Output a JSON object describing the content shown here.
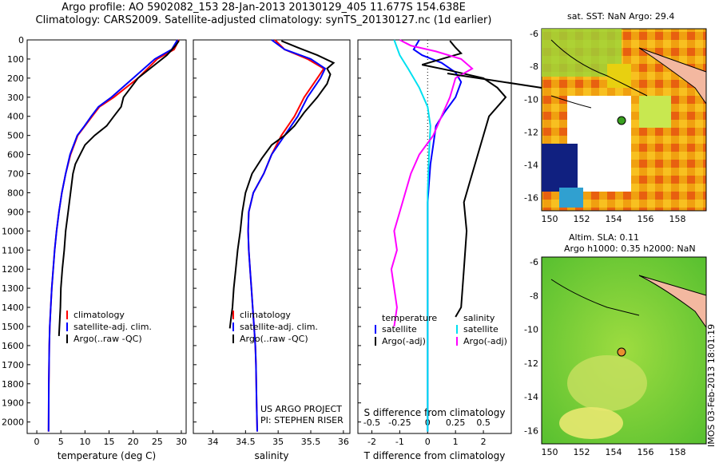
{
  "header": {
    "line1": "Argo profile: AO 5902082_153 28-Jan-2013 20130129_405 11.677S 154.638E",
    "line2": "Climatology: CARS2009. Satellite-adjusted climatology: synTS_20130127.nc (1d earlier)"
  },
  "colors": {
    "clim": "#ff0000",
    "sat": "#0000ff",
    "argo": "#000000",
    "sal_sat": "#00e0f0",
    "sal_argo": "#ff00ff"
  },
  "chart_data": [
    {
      "type": "line",
      "name": "temperature",
      "xlabel": "temperature (deg C)",
      "xlim": [
        -2,
        31
      ],
      "ylim": [
        2060,
        0
      ],
      "xticks": [
        0,
        5,
        10,
        15,
        20,
        25,
        30
      ],
      "yticks": [
        0,
        100,
        200,
        300,
        400,
        500,
        600,
        700,
        800,
        900,
        1000,
        1100,
        1200,
        1300,
        1400,
        1500,
        1600,
        1700,
        1800,
        1900,
        2000
      ],
      "legend": [
        "climatology",
        "satellite-adj. clim.",
        "Argo(..raw -QC)"
      ],
      "series": [
        {
          "name": "climatology",
          "color": "clim",
          "x": [
            29.5,
            28.5,
            25,
            21,
            16,
            13,
            11.5,
            10,
            8.5,
            7,
            6,
            5.2,
            4.6,
            4.1,
            3.7,
            3.4,
            3.1,
            2.9,
            2.7,
            2.6,
            2.5,
            2.45
          ],
          "y": [
            0,
            50,
            100,
            200,
            300,
            350,
            400,
            450,
            500,
            600,
            700,
            800,
            900,
            1000,
            1100,
            1200,
            1300,
            1400,
            1500,
            1600,
            1800,
            2050
          ]
        },
        {
          "name": "satellite-adj. clim.",
          "color": "sat",
          "x": [
            29.2,
            28,
            24.5,
            20,
            15.5,
            12.8,
            11.3,
            9.9,
            8.4,
            6.9,
            6,
            5.2,
            4.6,
            4.1,
            3.7,
            3.4,
            3.1,
            2.9,
            2.7,
            2.6,
            2.5,
            2.45
          ],
          "y": [
            0,
            50,
            100,
            200,
            300,
            350,
            400,
            450,
            500,
            600,
            700,
            800,
            900,
            1000,
            1100,
            1200,
            1300,
            1400,
            1500,
            1600,
            1800,
            2050
          ]
        },
        {
          "name": "Argo(..raw -QC)",
          "color": "argo",
          "x": [
            29.5,
            28.8,
            27,
            24,
            21,
            19.5,
            18,
            17.5,
            16,
            14.5,
            12,
            10,
            9,
            8,
            7.5,
            7,
            6.5,
            6,
            5.7,
            5.3,
            5,
            4.9,
            4.7,
            4.6
          ],
          "y": [
            5,
            30,
            80,
            140,
            200,
            250,
            300,
            350,
            400,
            450,
            500,
            550,
            600,
            650,
            700,
            800,
            900,
            1000,
            1100,
            1200,
            1300,
            1400,
            1500,
            1550
          ]
        }
      ]
    },
    {
      "type": "line",
      "name": "salinity",
      "xlabel": "salinity",
      "xlim": [
        33.7,
        36.1
      ],
      "ylim": [
        2060,
        0
      ],
      "xticks": [
        34,
        34.5,
        35,
        35.5,
        36
      ],
      "legend": [
        "climatology",
        "satellite-adj. clim.",
        "Argo(..raw -QC)"
      ],
      "annotation": [
        "US ARGO PROJECT",
        "PI: STEPHEN RISER"
      ],
      "series": [
        {
          "name": "climatology",
          "color": "clim",
          "x": [
            34.95,
            35.1,
            35.45,
            35.7,
            35.6,
            35.4,
            35.25,
            35.05,
            34.9,
            34.78,
            34.62,
            34.55,
            34.54,
            34.55,
            34.57,
            34.59,
            34.61,
            34.63,
            34.65,
            34.66,
            34.67,
            34.68
          ],
          "y": [
            0,
            50,
            100,
            150,
            200,
            300,
            400,
            500,
            600,
            700,
            800,
            900,
            1000,
            1100,
            1200,
            1300,
            1400,
            1500,
            1600,
            1700,
            1900,
            2050
          ]
        },
        {
          "name": "satellite-adj. clim.",
          "color": "sat",
          "x": [
            34.9,
            35.1,
            35.5,
            35.72,
            35.65,
            35.45,
            35.3,
            35.1,
            34.9,
            34.78,
            34.62,
            34.55,
            34.54,
            34.55,
            34.57,
            34.59,
            34.61,
            34.63,
            34.65,
            34.66,
            34.67,
            34.68
          ],
          "y": [
            0,
            50,
            100,
            150,
            200,
            300,
            400,
            500,
            600,
            700,
            800,
            900,
            1000,
            1100,
            1200,
            1300,
            1400,
            1500,
            1600,
            1700,
            1900,
            2050
          ]
        },
        {
          "name": "Argo(..raw -QC)",
          "color": "argo",
          "x": [
            35.05,
            35.3,
            35.6,
            35.85,
            35.75,
            35.8,
            35.75,
            35.6,
            35.4,
            35.25,
            35.1,
            34.9,
            34.75,
            34.6,
            34.5,
            34.45,
            34.42,
            34.38,
            34.35,
            34.32,
            34.3,
            34.28,
            34.26
          ],
          "y": [
            5,
            40,
            80,
            120,
            150,
            180,
            230,
            300,
            380,
            450,
            500,
            550,
            620,
            700,
            800,
            900,
            1000,
            1100,
            1200,
            1300,
            1400,
            1450,
            1510
          ]
        }
      ]
    },
    {
      "type": "line",
      "name": "difference",
      "xlabel": "T difference from climatology",
      "xlabel_top": "S difference from climatology",
      "xlim": [
        -2.5,
        3
      ],
      "ylim": [
        2060,
        0
      ],
      "xticks": [
        -2,
        -1,
        0,
        1,
        2
      ],
      "sticks": [
        "-0.5",
        "-0.25",
        "0",
        "0.25",
        "0.5"
      ],
      "legend_titles": [
        "temperature",
        "salinity"
      ],
      "legend": [
        "satellite",
        "Argo(-adj)",
        "satellite",
        "Argo(-adj)"
      ],
      "series": [
        {
          "name": "T satellite",
          "color": "sat",
          "x": [
            -0.3,
            -0.5,
            -0.2,
            0.5,
            1,
            1.2,
            1.0,
            0.6,
            0.3,
            0.2,
            0.1,
            0.05,
            0,
            0,
            0,
            0,
            0,
            0,
            0,
            0
          ],
          "y": [
            0,
            50,
            80,
            120,
            170,
            220,
            300,
            380,
            450,
            550,
            650,
            750,
            850,
            1000,
            1200,
            1400,
            1600,
            1800,
            2000,
            2050
          ]
        },
        {
          "name": "T Argo",
          "color": "argo",
          "x": [
            0.8,
            1.0,
            1.2,
            0.5,
            -0.2,
            0.8,
            2.0,
            2.5,
            2.8,
            2.2,
            1.8,
            1.5,
            1.3,
            1.4,
            1.3,
            1.2,
            1.0
          ],
          "y": [
            5,
            40,
            70,
            100,
            130,
            160,
            200,
            250,
            300,
            400,
            600,
            750,
            850,
            1000,
            1200,
            1400,
            1450
          ]
        },
        {
          "name": "S satellite",
          "color": "sal_sat",
          "x": [
            -1.2,
            -1.1,
            -1.0,
            -0.7,
            -0.3,
            0,
            0.1,
            0.05,
            0,
            0,
            0,
            0,
            0,
            0
          ],
          "y": [
            0,
            40,
            80,
            150,
            250,
            350,
            450,
            600,
            800,
            1000,
            1200,
            1500,
            1800,
            2050
          ]
        },
        {
          "name": "S Argo",
          "color": "sal_argo",
          "x": [
            -1.0,
            -0.6,
            0.3,
            1.2,
            1.6,
            1.0,
            0.8,
            0.5,
            0.2,
            -0.3,
            -0.6,
            -0.8,
            -1.0,
            -1.2,
            -1.1,
            -1.3,
            -1.1,
            -1.2
          ],
          "y": [
            0,
            30,
            60,
            100,
            150,
            200,
            300,
            400,
            500,
            600,
            700,
            800,
            900,
            1000,
            1100,
            1200,
            1400,
            1500
          ]
        }
      ]
    }
  ],
  "maps": {
    "top": {
      "title": "sat. SST: NaN Argo: 29.4",
      "xticks": [
        "150",
        "152",
        "154",
        "156",
        "158"
      ],
      "yticks": [
        "-6",
        "-8",
        "-10",
        "-12",
        "-14",
        "-16"
      ]
    },
    "bottom": {
      "title1": "Altim. SLA: 0.11",
      "title2": "Argo h1000: 0.35 h2000: NaN",
      "xticks": [
        "150",
        "152",
        "154",
        "156",
        "158"
      ],
      "yticks": [
        "-6",
        "-8",
        "-10",
        "-12",
        "-14",
        "-16"
      ]
    }
  },
  "footer": {
    "imos": "IMOS 03-Feb-2013 18:01:19"
  }
}
